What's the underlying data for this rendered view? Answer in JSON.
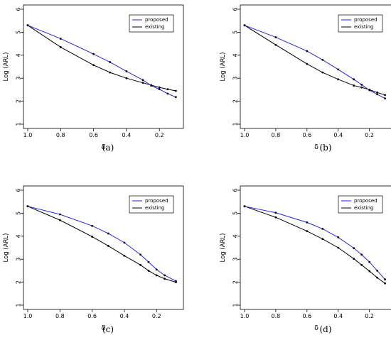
{
  "figure": {
    "panels": [
      {
        "caption": "(a)",
        "chart": {
          "type": "line",
          "xlabel": "δ",
          "ylabel": "Log (ARL)",
          "xlim": [
            1.0,
            0.08
          ],
          "ylim": [
            1,
            6
          ],
          "x_ticks": [
            "1.0",
            "0.8",
            "0.6",
            "0.4",
            "0.2"
          ],
          "y_ticks": [
            "1",
            "2",
            "3",
            "4",
            "5",
            "6"
          ],
          "legend": "top-right",
          "grid": false,
          "x": [
            1.0,
            0.8,
            0.6,
            0.5,
            0.4,
            0.3,
            0.25,
            0.2,
            0.15,
            0.1
          ],
          "series": [
            {
              "name": "proposed",
              "color": "#2222ee",
              "values": [
                5.3,
                4.72,
                4.05,
                3.7,
                3.3,
                2.92,
                2.68,
                2.52,
                2.33,
                2.18
              ]
            },
            {
              "name": "existing",
              "color": "#000000",
              "values": [
                5.3,
                4.35,
                3.57,
                3.25,
                3.0,
                2.8,
                2.7,
                2.6,
                2.52,
                2.45
              ]
            }
          ]
        }
      },
      {
        "caption": "(b)",
        "chart": {
          "type": "line",
          "xlabel": "δ",
          "ylabel": "Log (ARL)",
          "xlim": [
            1.0,
            0.08
          ],
          "ylim": [
            1,
            6
          ],
          "x_ticks": [
            "1.0",
            "0.8",
            "0.6",
            "0.4",
            "0.2"
          ],
          "y_ticks": [
            "1",
            "2",
            "3",
            "4",
            "5",
            "6"
          ],
          "legend": "top-right",
          "grid": false,
          "x": [
            1.0,
            0.8,
            0.6,
            0.5,
            0.4,
            0.3,
            0.25,
            0.2,
            0.15,
            0.1
          ],
          "series": [
            {
              "name": "proposed",
              "color": "#2222ee",
              "values": [
                5.3,
                4.78,
                4.18,
                3.8,
                3.38,
                2.95,
                2.72,
                2.48,
                2.3,
                2.12
              ]
            },
            {
              "name": "existing",
              "color": "#000000",
              "values": [
                5.3,
                4.45,
                3.62,
                3.25,
                2.95,
                2.68,
                2.6,
                2.5,
                2.38,
                2.27
              ]
            }
          ]
        }
      },
      {
        "caption": "(c)",
        "chart": {
          "type": "line",
          "xlabel": "δ",
          "ylabel": "Log (ARL)",
          "xlim": [
            1.0,
            0.06
          ],
          "ylim": [
            1,
            6
          ],
          "x_ticks": [
            "1.0",
            "0.8",
            "0.6",
            "0.4",
            "0.2"
          ],
          "y_ticks": [
            "1",
            "2",
            "3",
            "4",
            "5",
            "6"
          ],
          "legend": "top-right",
          "grid": false,
          "x": [
            1.0,
            0.8,
            0.6,
            0.5,
            0.4,
            0.3,
            0.25,
            0.2,
            0.15,
            0.08
          ],
          "series": [
            {
              "name": "proposed",
              "color": "#2222ee",
              "values": [
                5.3,
                4.95,
                4.45,
                4.12,
                3.72,
                3.2,
                2.88,
                2.55,
                2.3,
                2.05
              ]
            },
            {
              "name": "existing",
              "color": "#000000",
              "values": [
                5.3,
                4.7,
                3.98,
                3.58,
                3.15,
                2.75,
                2.5,
                2.3,
                2.15,
                2.0
              ]
            }
          ]
        }
      },
      {
        "caption": "(d)",
        "chart": {
          "type": "line",
          "xlabel": "δ",
          "ylabel": "Log (ARL)",
          "xlim": [
            1.0,
            0.08
          ],
          "ylim": [
            1,
            6
          ],
          "x_ticks": [
            "1.0",
            "0.8",
            "0.6",
            "0.4",
            "0.2"
          ],
          "y_ticks": [
            "1",
            "2",
            "3",
            "4",
            "5",
            "6"
          ],
          "legend": "top-right",
          "grid": false,
          "x": [
            1.0,
            0.8,
            0.6,
            0.5,
            0.4,
            0.3,
            0.25,
            0.2,
            0.15,
            0.1
          ],
          "series": [
            {
              "name": "proposed",
              "color": "#2222ee",
              "values": [
                5.3,
                5.02,
                4.6,
                4.32,
                3.95,
                3.48,
                3.2,
                2.88,
                2.5,
                2.12
              ]
            },
            {
              "name": "existing",
              "color": "#000000",
              "values": [
                5.3,
                4.82,
                4.22,
                3.88,
                3.5,
                3.02,
                2.75,
                2.48,
                2.2,
                1.95
              ]
            }
          ]
        }
      }
    ]
  }
}
